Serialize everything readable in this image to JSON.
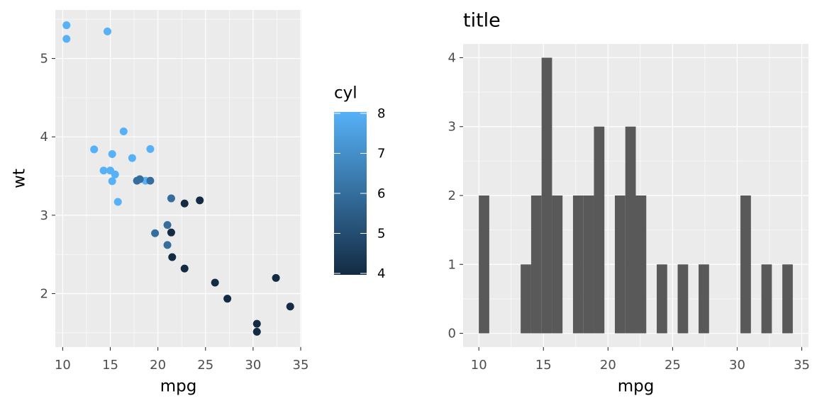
{
  "chart_data": [
    {
      "type": "scatter",
      "x_label": "mpg",
      "y_label": "wt",
      "x": [
        21.0,
        21.0,
        22.8,
        21.4,
        18.7,
        18.1,
        14.3,
        24.4,
        22.8,
        19.2,
        17.8,
        16.4,
        17.3,
        15.2,
        10.4,
        10.4,
        14.7,
        32.4,
        30.4,
        33.9,
        21.5,
        15.5,
        15.2,
        13.3,
        19.2,
        27.3,
        26.0,
        30.4,
        15.8,
        19.7,
        15.0,
        21.4
      ],
      "y": [
        2.62,
        2.875,
        2.32,
        3.215,
        3.44,
        3.46,
        3.57,
        3.19,
        3.15,
        3.44,
        3.44,
        4.07,
        3.73,
        3.78,
        5.25,
        5.424,
        5.345,
        2.2,
        1.615,
        1.835,
        2.465,
        3.52,
        3.435,
        3.84,
        3.845,
        1.935,
        2.14,
        1.513,
        3.17,
        2.77,
        3.57,
        2.78
      ],
      "color_values": [
        6,
        6,
        4,
        6,
        8,
        6,
        8,
        4,
        4,
        6,
        6,
        8,
        8,
        8,
        8,
        8,
        8,
        4,
        4,
        4,
        4,
        8,
        8,
        8,
        8,
        4,
        4,
        4,
        8,
        6,
        8,
        4
      ],
      "color_legend": {
        "title": "cyl",
        "lim": [
          4,
          8
        ],
        "ticks": [
          4,
          5,
          6,
          7,
          8
        ],
        "low": "#132B43",
        "high": "#56B1F7"
      },
      "xlim": [
        9.225,
        35.075
      ],
      "ylim": [
        1.3175,
        5.6196
      ],
      "xticks": [
        10,
        15,
        20,
        25,
        30,
        35
      ],
      "yticks": [
        2,
        3,
        4,
        5
      ],
      "x_minor_ticks": [
        12.5,
        17.5,
        22.5,
        27.5,
        32.5
      ],
      "y_minor_ticks": [
        1.5,
        2.5,
        3.5,
        4.5,
        5.5
      ],
      "grid": true
    },
    {
      "type": "histogram",
      "title": "title",
      "x_label": "mpg",
      "color": "#595959",
      "bins": [
        9.9948,
        10.8052,
        11.6155,
        12.4259,
        13.2362,
        14.0466,
        14.8569,
        15.6672,
        16.4776,
        17.2879,
        18.0983,
        18.9086,
        19.719,
        20.5293,
        21.3397,
        22.15,
        22.9603,
        23.7707,
        24.581,
        25.3914,
        26.2017,
        27.0121,
        27.8224,
        28.6328,
        29.4431,
        30.2534,
        31.0638,
        31.8741,
        32.6845,
        33.4948,
        34.3052
      ],
      "values": [
        2,
        0,
        0,
        0,
        1,
        2,
        4,
        2,
        0,
        2,
        2,
        3,
        0,
        2,
        3,
        2,
        0,
        1,
        0,
        1,
        0,
        1,
        0,
        0,
        0,
        2,
        0,
        1,
        0,
        1
      ],
      "xlim": [
        8.78,
        35.52
      ],
      "ylim": [
        -0.2,
        4.2
      ],
      "xticks": [
        10,
        15,
        20,
        25,
        30,
        35
      ],
      "yticks": [
        0,
        1,
        2,
        3,
        4
      ],
      "x_minor_ticks": [
        12.5,
        17.5,
        22.5,
        27.5,
        32.5
      ],
      "y_minor_ticks": [
        0.5,
        1.5,
        2.5,
        3.5
      ],
      "grid": true
    }
  ]
}
